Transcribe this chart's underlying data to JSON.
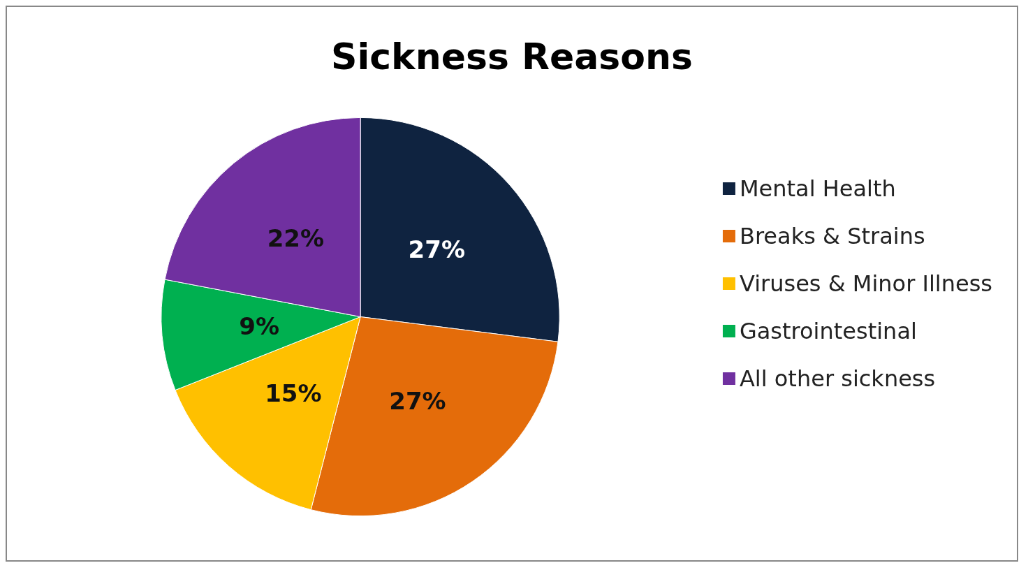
{
  "chart_data": {
    "type": "pie",
    "title": "Sickness Reasons",
    "categories": [
      "Mental Health",
      "Breaks & Strains",
      "Viruses & Minor Illness",
      "Gastrointestinal",
      "All other sickness"
    ],
    "values": [
      27,
      27,
      15,
      9,
      22
    ],
    "value_labels": [
      "27%",
      "27%",
      "15%",
      "9%",
      "22%"
    ],
    "colors": [
      "#0f2340",
      "#e46c0a",
      "#ffc000",
      "#00b050",
      "#7030a0"
    ],
    "legend": "right"
  }
}
